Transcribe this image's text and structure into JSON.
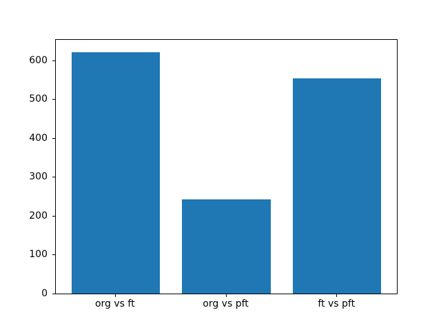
{
  "figure": {
    "background": "#ffffff"
  },
  "chart_data": {
    "type": "bar",
    "categories": [
      "org vs ft",
      "org vs pft",
      "ft vs pft"
    ],
    "values": [
      623,
      242,
      555
    ],
    "title": "",
    "xlabel": "",
    "ylabel": "",
    "ylim": [
      0,
      654
    ],
    "xlim": [
      -0.54,
      2.54
    ],
    "yticks": [
      0,
      100,
      200,
      300,
      400,
      500,
      600
    ],
    "bar_width": 0.8,
    "bar_color": "#1f77b4",
    "spine_color": "#000000",
    "tick_color": "#000000",
    "grid": false,
    "legend_position": "none"
  }
}
